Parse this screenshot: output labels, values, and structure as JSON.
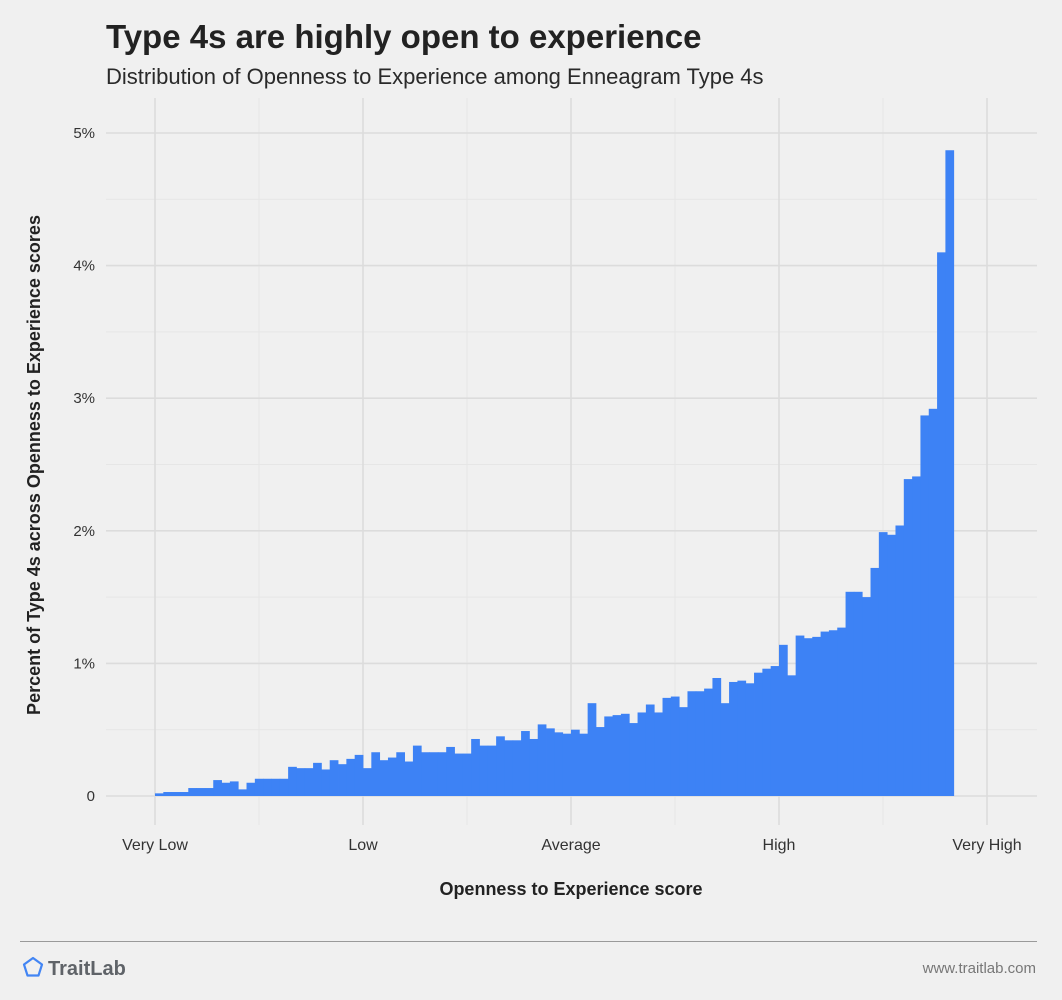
{
  "header": {
    "title": "Type 4s are highly open to experience",
    "subtitle": "Distribution of Openness to Experience among Enneagram Type 4s"
  },
  "footer": {
    "brand": "TraitLab",
    "url": "www.traitlab.com",
    "logo_icon": "pentagon-icon",
    "logo_color": "#4285f4"
  },
  "colors": {
    "bar": "#3d82f5",
    "background": "#f0f0f0",
    "grid_major": "#dcdcdc",
    "grid_minor": "#e6e6e6",
    "text": "#222222"
  },
  "chart_data": {
    "type": "bar",
    "xlabel": "Openness to Experience score",
    "ylabel": "Percent of Type 4s across Openness to Experience scores",
    "xlim": [
      0,
      100
    ],
    "x_ticks": [
      {
        "value": 0,
        "label": "Very Low"
      },
      {
        "value": 25,
        "label": "Low"
      },
      {
        "value": 50,
        "label": "Average"
      },
      {
        "value": 75,
        "label": "High"
      },
      {
        "value": 100,
        "label": "Very High"
      }
    ],
    "ylim": [
      0,
      5.1
    ],
    "y_ticks": [
      {
        "value": 0,
        "label": "0"
      },
      {
        "value": 1,
        "label": "1%"
      },
      {
        "value": 2,
        "label": "2%"
      },
      {
        "value": 3,
        "label": "3%"
      },
      {
        "value": 4,
        "label": "4%"
      },
      {
        "value": 5,
        "label": "5%"
      }
    ],
    "grid": true,
    "bin_start": 0,
    "bin_width": 1,
    "series": [
      {
        "values": [
          0.02,
          0.03,
          0.03,
          0.03,
          0.06,
          0.06,
          0.06,
          0.12,
          0.1,
          0.11,
          0.05,
          0.1,
          0.13,
          0.13,
          0.13,
          0.13,
          0.22,
          0.21,
          0.21,
          0.25,
          0.2,
          0.27,
          0.24,
          0.28,
          0.31,
          0.21,
          0.33,
          0.27,
          0.29,
          0.33,
          0.26,
          0.38,
          0.33,
          0.33,
          0.33,
          0.37,
          0.32,
          0.32,
          0.43,
          0.38,
          0.38,
          0.45,
          0.42,
          0.42,
          0.49,
          0.43,
          0.54,
          0.51,
          0.48,
          0.47,
          0.5,
          0.47,
          0.7,
          0.52,
          0.6,
          0.61,
          0.62,
          0.55,
          0.63,
          0.69,
          0.63,
          0.74,
          0.75,
          0.67,
          0.79,
          0.79,
          0.81,
          0.89,
          0.7,
          0.86,
          0.87,
          0.85,
          0.93,
          0.96,
          0.98,
          1.14,
          0.91,
          1.21,
          1.19,
          1.2,
          1.24,
          1.25,
          1.27,
          1.54,
          1.54,
          1.5,
          1.72,
          1.99,
          1.97,
          2.04,
          2.39,
          2.41,
          2.87,
          2.92,
          4.1,
          4.87
        ]
      }
    ]
  }
}
